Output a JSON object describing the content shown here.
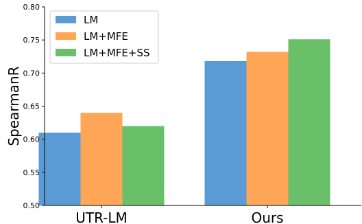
{
  "chart_data": {
    "type": "bar",
    "categories": [
      "UTR-LM",
      "Ours"
    ],
    "series": [
      {
        "name": "LM",
        "values": [
          0.61,
          0.718
        ],
        "color": "#5b9bd5"
      },
      {
        "name": "LM+MFE",
        "values": [
          0.64,
          0.732
        ],
        "color": "#ffa657"
      },
      {
        "name": "LM+MFE+SS",
        "values": [
          0.62,
          0.751
        ],
        "color": "#6abf69"
      }
    ],
    "title": "",
    "xlabel": "",
    "ylabel": "SpearmanR",
    "ylim": [
      0.5,
      0.8
    ],
    "yticks": [
      "0.50",
      "0.55",
      "0.60",
      "0.65",
      "0.70",
      "0.75",
      "0.80"
    ],
    "legend_position": "top-left",
    "grid": false
  }
}
